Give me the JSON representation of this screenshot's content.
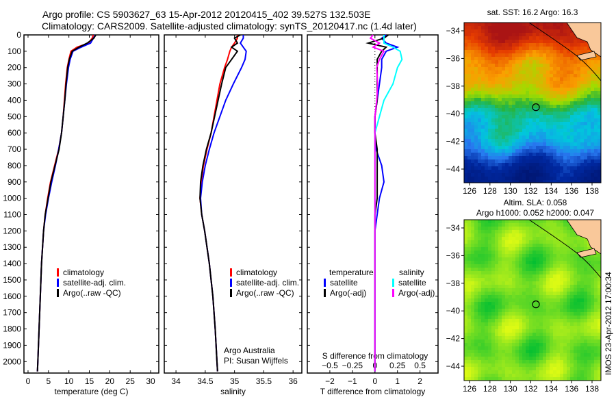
{
  "header": {
    "line1": "Argo profile: CS 5903627_63 15-Apr-2012 20120415_402 39.527S 132.503E",
    "line2": "Climatology: CARS2009. Satellite-adjusted climatology: synTS_20120417.nc (1.4d later)"
  },
  "colors": {
    "climatology": "#ff0000",
    "satellite": "#0000ff",
    "argo": "#000000",
    "sal_satellite": "#00ffff",
    "sal_argo": "#ff00ff",
    "land": "#f9c89a"
  },
  "chart_data": [
    {
      "type": "line",
      "name": "temperature-profile",
      "xlabel": "temperature (deg C)",
      "xlim": [
        -1,
        32
      ],
      "ylim": [
        2070,
        0
      ],
      "xticks": [
        "0",
        "5",
        "10",
        "15",
        "20",
        "25",
        "30"
      ],
      "yticks": [
        "0",
        "100",
        "200",
        "300",
        "400",
        "500",
        "600",
        "700",
        "800",
        "900",
        "1000",
        "1100",
        "1200",
        "1300",
        "1400",
        "1500",
        "1600",
        "1700",
        "1800",
        "1900",
        "2000"
      ],
      "depth": [
        0,
        20,
        50,
        75,
        100,
        150,
        200,
        300,
        400,
        500,
        600,
        700,
        800,
        900,
        1000,
        1100,
        1200,
        1400,
        1600,
        1800,
        2000,
        2060
      ],
      "series": [
        {
          "name": "climatology",
          "color": "#ff0000",
          "values": [
            16,
            15.7,
            14.8,
            12,
            10.5,
            10,
            9.6,
            9.2,
            8.9,
            8.6,
            8.2,
            7.5,
            6.5,
            5.5,
            4.8,
            4.2,
            3.8,
            3.3,
            3.0,
            2.7,
            2.4,
            2.3
          ]
        },
        {
          "name": "satellite-adj. clim.",
          "color": "#0000ff",
          "values": [
            16.5,
            16,
            15.3,
            13,
            11,
            10.3,
            9.9,
            9.4,
            9.0,
            8.6,
            8.2,
            7.5,
            6.7,
            5.8,
            5.0,
            4.3,
            3.8,
            3.3,
            3.0,
            2.7,
            2.4,
            2.3
          ]
        },
        {
          "name": "Argo(..raw -QC)",
          "color": "#000000",
          "values": [
            16.6,
            16.1,
            14.5,
            12.5,
            10.8,
            10.1,
            9.7,
            9.3,
            9.0,
            8.6,
            8.2,
            7.6,
            6.6,
            5.6,
            4.9,
            4.2,
            3.8,
            3.3,
            3.0,
            2.7,
            2.4,
            2.3
          ]
        }
      ]
    },
    {
      "type": "line",
      "name": "salinity-profile",
      "xlabel": "salinity",
      "xlim": [
        33.8,
        36.15
      ],
      "ylim": [
        2070,
        0
      ],
      "xticks": [
        "34",
        "34.5",
        "35",
        "35.5",
        "36"
      ],
      "annotation": [
        "Argo Australia",
        "PI: Susan Wijffels"
      ],
      "depth": [
        0,
        20,
        50,
        75,
        100,
        150,
        200,
        300,
        400,
        500,
        600,
        700,
        800,
        900,
        1000,
        1100,
        1200,
        1400,
        1600,
        1800,
        2000,
        2060
      ],
      "series": [
        {
          "name": "climatology",
          "color": "#ff0000",
          "values": [
            35.05,
            35.05,
            35.0,
            34.95,
            34.92,
            34.88,
            34.83,
            34.75,
            34.7,
            34.65,
            34.6,
            34.53,
            34.47,
            34.43,
            34.41,
            34.44,
            34.49,
            34.57,
            34.63,
            34.67,
            34.7,
            34.71
          ]
        },
        {
          "name": "satellite-adj. clim.",
          "color": "#0000ff",
          "values": [
            35.15,
            35.15,
            35.1,
            35.15,
            35.2,
            35.18,
            35.12,
            34.98,
            34.85,
            34.75,
            34.65,
            34.57,
            34.5,
            34.45,
            34.42,
            34.44,
            34.49,
            34.57,
            34.63,
            34.67,
            34.7,
            34.71
          ]
        },
        {
          "name": "Argo(..raw -QC)",
          "color": "#000000",
          "values": [
            35.1,
            35.0,
            35.05,
            34.95,
            35.05,
            34.95,
            34.85,
            34.78,
            34.72,
            34.66,
            34.6,
            34.52,
            34.46,
            34.42,
            34.41,
            34.44,
            34.49,
            34.57,
            34.63,
            34.67,
            34.7,
            34.71
          ]
        }
      ]
    },
    {
      "type": "line",
      "name": "difference-profile",
      "xlabel": "T difference from climatology",
      "xlabel2": "S difference from climatology",
      "xlim": [
        -3,
        2.8
      ],
      "ylim": [
        2070,
        0
      ],
      "xticks": [
        "-2",
        "-1",
        "0",
        "1",
        "2"
      ],
      "xticks2": [
        "-0.5",
        "-0.25",
        "0",
        "0.25",
        "0.5"
      ],
      "legend_headers": [
        "temperature",
        "salinity"
      ],
      "depth": [
        0,
        20,
        50,
        75,
        100,
        150,
        200,
        300,
        400,
        500,
        600,
        700,
        800,
        900,
        1000,
        1100,
        1200,
        1400,
        1600,
        1800,
        2000,
        2060
      ],
      "series": [
        {
          "name": "satellite",
          "group": "temperature",
          "color": "#0000ff",
          "units": "T",
          "values": [
            0.5,
            0.3,
            0.5,
            1.0,
            0.5,
            0.3,
            0.3,
            0.2,
            0.1,
            0,
            0,
            0.05,
            0.3,
            0.4,
            0.2,
            0.1,
            0,
            0,
            0,
            0,
            0,
            0
          ]
        },
        {
          "name": "Argo(-adj)",
          "group": "temperature",
          "color": "#000000",
          "units": "T",
          "values": [
            0.6,
            0.4,
            -0.3,
            0.5,
            0.3,
            0.1,
            0.1,
            0.1,
            0.1,
            0,
            0,
            0.1,
            0.1,
            0.1,
            0.1,
            0,
            0,
            0,
            0,
            0,
            0,
            0
          ]
        },
        {
          "name": "satellite",
          "group": "salinity",
          "color": "#00ffff",
          "units": "S",
          "values": [
            0.1,
            0.1,
            0.1,
            0.2,
            0.28,
            0.3,
            0.25,
            0.2,
            0.1,
            0.05,
            0,
            0,
            0,
            0,
            0,
            0,
            0,
            0,
            0,
            0,
            0,
            0
          ]
        },
        {
          "name": "Argo(-adj)",
          "group": "salinity",
          "color": "#ff00ff",
          "units": "S",
          "values": [
            -0.02,
            -0.05,
            0.05,
            -0.02,
            0.1,
            0.05,
            0.02,
            0.03,
            0.02,
            0,
            0,
            0,
            0,
            0,
            0,
            0,
            0,
            0,
            0,
            0,
            0,
            0
          ]
        }
      ]
    },
    {
      "type": "heatmap",
      "name": "sst-map",
      "title": "sat. SST: 16.2  Argo: 16.3",
      "xticks": [
        "126",
        "128",
        "130",
        "132",
        "134",
        "136",
        "138"
      ],
      "yticks": [
        "-34",
        "-36",
        "-38",
        "-40",
        "-42",
        "-44"
      ],
      "float_position": {
        "lon": 132.503,
        "lat": -39.527
      }
    },
    {
      "type": "heatmap",
      "name": "sla-map",
      "title": "Altim. SLA: 0.058",
      "subtitle": "Argo h1000: 0.052 h2000: 0.047",
      "xticks": [
        "126",
        "128",
        "130",
        "132",
        "134",
        "136",
        "138"
      ],
      "yticks": [
        "-34",
        "-36",
        "-38",
        "-40",
        "-42",
        "-44"
      ],
      "float_position": {
        "lon": 132.503,
        "lat": -39.527
      }
    }
  ],
  "footer": {
    "stamp": "IMOS 23-Apr-2012 17:00:34"
  }
}
